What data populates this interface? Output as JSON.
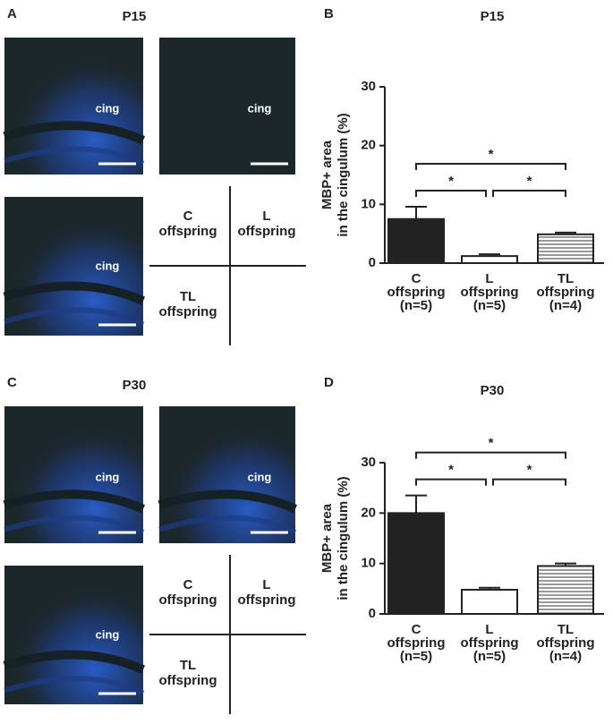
{
  "figure": {
    "image_panels": [
      {
        "panel_label": "A",
        "title": "P15",
        "image_labels": [
          "cing",
          "cing",
          "cing"
        ],
        "legend": [
          [
            "C",
            "offspring"
          ],
          [
            "L",
            "offspring"
          ],
          [
            "TL",
            "offspring"
          ]
        ]
      },
      {
        "panel_label": "C",
        "title": "P30",
        "image_labels": [
          "cing",
          "cing",
          "cing"
        ],
        "legend": [
          [
            "C",
            "offspring"
          ],
          [
            "L",
            "offspring"
          ],
          [
            "TL",
            "offspring"
          ]
        ]
      }
    ]
  },
  "chart_data": [
    {
      "type": "bar",
      "panel_label": "B",
      "title": "P15",
      "y_label": [
        "MBP+ area",
        "in the cingulum (%)"
      ],
      "categories": [
        [
          "C",
          "offspring",
          "(n=5)"
        ],
        [
          "L",
          "offspring",
          "(n=5)"
        ],
        [
          "TL",
          "offspring",
          "(n=4)"
        ]
      ],
      "values": [
        7.5,
        1.2,
        4.9
      ],
      "errors": [
        2.1,
        0.3,
        0.3
      ],
      "colors": [
        "#222222",
        "#ffffff",
        "hatch"
      ],
      "ylim": [
        0,
        30
      ],
      "yticks": [
        0,
        10,
        20,
        30
      ],
      "significance": [
        {
          "from": 0,
          "to": 1,
          "label": "*"
        },
        {
          "from": 1,
          "to": 2,
          "label": "*"
        },
        {
          "from": 0,
          "to": 2,
          "label": "*"
        }
      ]
    },
    {
      "type": "bar",
      "panel_label": "D",
      "title": "P30",
      "y_label": [
        "MBP+ area",
        "in the cingulum (%)"
      ],
      "categories": [
        [
          "C",
          "offspring",
          "(n=5)"
        ],
        [
          "L",
          "offspring",
          "(n=5)"
        ],
        [
          "TL",
          "offspring",
          "(n=4)"
        ]
      ],
      "values": [
        20,
        4.8,
        9.5
      ],
      "errors": [
        3.5,
        0.4,
        0.5
      ],
      "colors": [
        "#222222",
        "#ffffff",
        "hatch"
      ],
      "ylim": [
        0,
        30
      ],
      "yticks": [
        0,
        10,
        20,
        30
      ],
      "significance": [
        {
          "from": 0,
          "to": 1,
          "label": "*"
        },
        {
          "from": 1,
          "to": 2,
          "label": "*"
        },
        {
          "from": 0,
          "to": 2,
          "label": "*"
        }
      ]
    }
  ]
}
